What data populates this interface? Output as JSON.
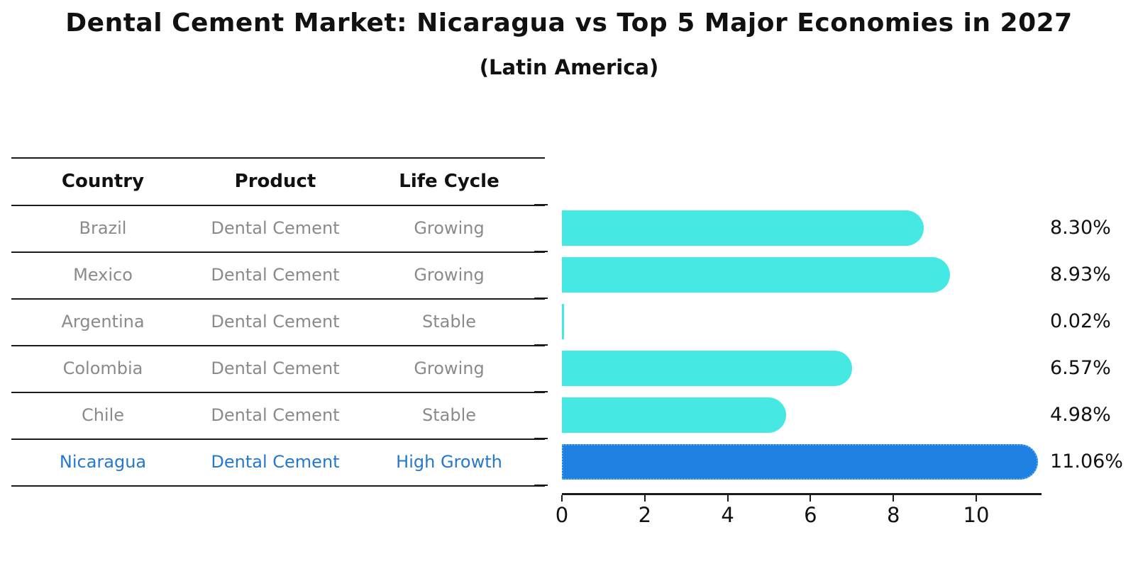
{
  "title": "Dental Cement Market: Nicaragua vs Top 5 Major Economies in 2027",
  "subtitle": "(Latin America)",
  "table": {
    "columns": [
      "Country",
      "Product",
      "Life Cycle"
    ],
    "rows": [
      {
        "country": "Brazil",
        "product": "Dental Cement",
        "life_cycle": "Growing",
        "highlight": false
      },
      {
        "country": "Mexico",
        "product": "Dental Cement",
        "life_cycle": "Growing",
        "highlight": false
      },
      {
        "country": "Argentina",
        "product": "Dental Cement",
        "life_cycle": "Stable",
        "highlight": false
      },
      {
        "country": "Colombia",
        "product": "Dental Cement",
        "life_cycle": "Growing",
        "highlight": false
      },
      {
        "country": "Chile",
        "product": "Dental Cement",
        "life_cycle": "Stable",
        "highlight": false
      },
      {
        "country": "Nicaragua",
        "product": "Dental Cement",
        "life_cycle": "High Growth",
        "highlight": true
      }
    ]
  },
  "chart_data": {
    "type": "bar",
    "orientation": "horizontal",
    "title": "Dental Cement Market: Nicaragua vs Top 5 Major Economies in 2027",
    "subtitle": "(Latin America)",
    "categories": [
      "Brazil",
      "Mexico",
      "Argentina",
      "Colombia",
      "Chile",
      "Nicaragua"
    ],
    "values": [
      8.3,
      8.93,
      0.02,
      6.57,
      4.98,
      11.06
    ],
    "value_labels": [
      "8.30%",
      "8.93%",
      "0.02%",
      "6.57%",
      "4.98%",
      "11.06%"
    ],
    "unit": "%",
    "highlight_index": 5,
    "xlabel": "",
    "ylabel": "",
    "xlim": [
      0,
      11.6
    ],
    "x_ticks": [
      0,
      2,
      4,
      6,
      8,
      10
    ],
    "x_tick_labels": [
      "0",
      "2",
      "4",
      "6",
      "8",
      "10"
    ],
    "grid": false,
    "legend": "none"
  },
  "colors": {
    "bar": "#46e8e4",
    "highlight_bar": "#1e80e1",
    "highlight_bar_border": "#5aa7f2",
    "row_text": "#8a8a8a",
    "highlight_text": "#2478cd",
    "axis": "#1a1a1a"
  }
}
